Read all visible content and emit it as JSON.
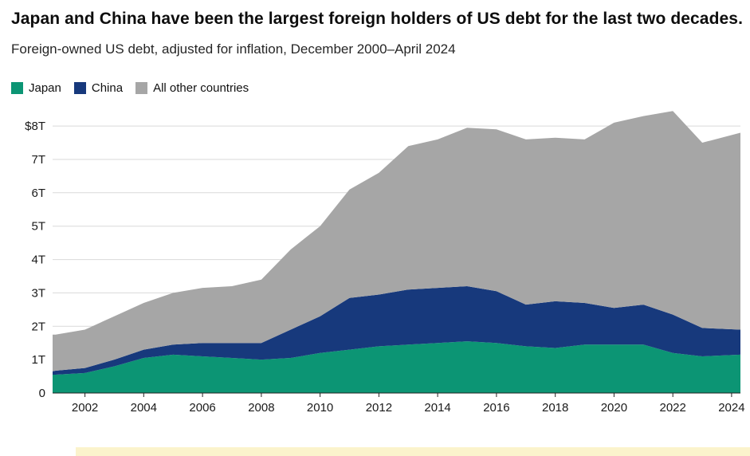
{
  "page": {
    "title": "Japan and China have been the largest foreign holders of US debt for the last two decades.",
    "subtitle": "Foreign-owned US debt, adjusted for inflation, December 2000–April 2024"
  },
  "colors": {
    "japan": "#0c9574",
    "china": "#17397c",
    "other": "#a6a6a6",
    "gridline": "#d9d9d9",
    "axis": "#222222",
    "tick_text": "#1a1a1a",
    "highlight_bar": "#fbf3cc"
  },
  "chart_data": {
    "type": "area",
    "stacked": true,
    "title": "Japan and China have been the largest foreign holders of US debt for the last two decades.",
    "subtitle": "Foreign-owned US debt, adjusted for inflation, December 2000–April 2024",
    "unit": "trillions USD",
    "legend_position": "top-left",
    "grid": true,
    "x": [
      2000.9,
      2001,
      2002,
      2003,
      2004,
      2005,
      2006,
      2007,
      2008,
      2009,
      2010,
      2011,
      2012,
      2013,
      2014,
      2015,
      2016,
      2017,
      2018,
      2019,
      2020,
      2021,
      2022,
      2023,
      2024.3
    ],
    "series": [
      {
        "name": "Japan",
        "color": "#0c9574",
        "values": [
          0.55,
          0.55,
          0.6,
          0.8,
          1.05,
          1.15,
          1.1,
          1.05,
          1.0,
          1.05,
          1.2,
          1.3,
          1.4,
          1.45,
          1.5,
          1.55,
          1.5,
          1.4,
          1.35,
          1.45,
          1.45,
          1.45,
          1.2,
          1.1,
          1.15
        ]
      },
      {
        "name": "China",
        "color": "#17397c",
        "values": [
          0.1,
          0.12,
          0.15,
          0.2,
          0.25,
          0.3,
          0.4,
          0.45,
          0.5,
          0.85,
          1.1,
          1.55,
          1.55,
          1.65,
          1.65,
          1.65,
          1.55,
          1.25,
          1.4,
          1.25,
          1.1,
          1.2,
          1.15,
          0.85,
          0.75
        ]
      },
      {
        "name": "All other countries",
        "color": "#a6a6a6",
        "values": [
          1.1,
          1.08,
          1.15,
          1.3,
          1.4,
          1.55,
          1.65,
          1.7,
          1.9,
          2.4,
          2.7,
          3.25,
          3.65,
          4.3,
          4.45,
          4.75,
          4.85,
          4.95,
          4.9,
          4.9,
          5.55,
          5.65,
          6.1,
          5.55,
          5.9
        ]
      }
    ],
    "xlim": [
      2000.9,
      2024.3
    ],
    "ylim": [
      0,
      8.6
    ],
    "xticks": [
      2002,
      2004,
      2006,
      2008,
      2010,
      2012,
      2014,
      2016,
      2018,
      2020,
      2022,
      2024
    ],
    "yticks": [
      {
        "value": 0,
        "label": "0"
      },
      {
        "value": 1,
        "label": "1T"
      },
      {
        "value": 2,
        "label": "2T"
      },
      {
        "value": 3,
        "label": "3T"
      },
      {
        "value": 4,
        "label": "4T"
      },
      {
        "value": 5,
        "label": "5T"
      },
      {
        "value": 6,
        "label": "6T"
      },
      {
        "value": 7,
        "label": "7T"
      },
      {
        "value": 8,
        "label": "$8T"
      }
    ]
  }
}
